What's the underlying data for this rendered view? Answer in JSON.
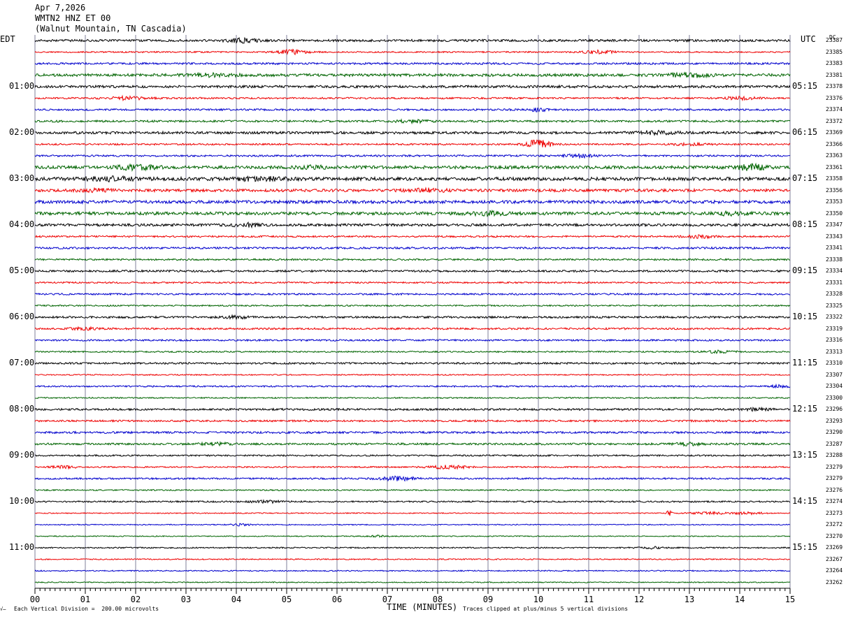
{
  "header": {
    "date": "Apr 7,2026",
    "station": "WMTN2 HNZ ET 00",
    "location": "(Walnut Mountain, TN Cascadia)"
  },
  "left_tz": "EDT",
  "right_tz": "UTC",
  "dc_label": "DC",
  "footer": {
    "scale_note": "Each Vertical Division =  200.00 microvolts",
    "xlabel": "TIME (MINUTES)",
    "clip_note": "Traces clipped at plus/minus 5 vertical divisions",
    "corner_mark": "√̶"
  },
  "colors": {
    "trace_cycle": [
      "#000000",
      "#ee0000",
      "#0000cc",
      "#006400"
    ],
    "grid": "#7f7f99"
  },
  "chart_data": {
    "type": "line",
    "title": "",
    "xlabel": "TIME (MINUTES)",
    "xlim": [
      0,
      15
    ],
    "x_ticks": [
      "00",
      "01",
      "02",
      "03",
      "04",
      "05",
      "06",
      "07",
      "08",
      "09",
      "10",
      "11",
      "12",
      "13",
      "14",
      "15"
    ],
    "rows_per_hour": 4,
    "left_hour_labels": [
      "01:00",
      "02:00",
      "03:00",
      "04:00",
      "05:00",
      "06:00",
      "07:00",
      "08:00",
      "09:00",
      "10:00",
      "11:00"
    ],
    "right_hour_labels": [
      "05:15",
      "06:15",
      "07:15",
      "08:15",
      "09:15",
      "10:15",
      "11:15",
      "12:15",
      "13:15",
      "14:15",
      "15:15"
    ],
    "dc_offsets": [
      23387,
      23385,
      23383,
      23381,
      23378,
      23376,
      23374,
      23372,
      23369,
      23366,
      23363,
      23361,
      23358,
      23356,
      23353,
      23350,
      23347,
      23343,
      23341,
      23338,
      23334,
      23331,
      23328,
      23325,
      23322,
      23319,
      23316,
      23313,
      23310,
      23307,
      23304,
      23300,
      23296,
      23293,
      23290,
      23287,
      23288,
      23279,
      23279,
      23276,
      23274,
      23273,
      23272,
      23270,
      23269,
      23267,
      23264,
      23262
    ],
    "series": [
      {
        "row": 0,
        "noise": 1.6,
        "events": [
          [
            4.1,
            2.5,
            0.3
          ]
        ]
      },
      {
        "row": 1,
        "noise": 1.0,
        "events": [
          [
            5.1,
            3,
            0.3
          ],
          [
            11.2,
            2.5,
            0.3
          ]
        ]
      },
      {
        "row": 2,
        "noise": 1.4,
        "events": []
      },
      {
        "row": 3,
        "noise": 2.0,
        "events": [
          [
            13.0,
            2.5,
            0.4
          ],
          [
            3.5,
            1.5,
            0.5
          ]
        ]
      },
      {
        "row": 4,
        "noise": 1.8,
        "events": []
      },
      {
        "row": 5,
        "noise": 1.2,
        "events": [
          [
            1.8,
            2,
            0.4
          ],
          [
            14.0,
            2,
            0.3
          ]
        ]
      },
      {
        "row": 6,
        "noise": 1.3,
        "events": [
          [
            10.0,
            2,
            0.2
          ]
        ]
      },
      {
        "row": 7,
        "noise": 1.4,
        "events": [
          [
            7.5,
            2,
            0.3
          ]
        ]
      },
      {
        "row": 8,
        "noise": 1.8,
        "events": [
          [
            12.3,
            2,
            0.4
          ]
        ]
      },
      {
        "row": 9,
        "noise": 1.2,
        "events": [
          [
            10.0,
            6,
            0.25
          ],
          [
            13.0,
            1.5,
            0.3
          ]
        ]
      },
      {
        "row": 10,
        "noise": 1.3,
        "events": [
          [
            10.8,
            2,
            0.3
          ]
        ]
      },
      {
        "row": 11,
        "noise": 2.2,
        "events": [
          [
            2.0,
            3,
            0.4
          ],
          [
            14.2,
            4,
            0.3
          ],
          [
            5.5,
            2,
            0.3
          ]
        ]
      },
      {
        "row": 12,
        "noise": 2.4,
        "events": [
          [
            1.5,
            2,
            0.5
          ],
          [
            4.5,
            2,
            0.5
          ]
        ]
      },
      {
        "row": 13,
        "noise": 2.0,
        "events": [
          [
            1.2,
            2,
            0.3
          ],
          [
            7.8,
            2,
            0.4
          ]
        ]
      },
      {
        "row": 14,
        "noise": 2.2,
        "events": []
      },
      {
        "row": 15,
        "noise": 2.2,
        "events": [
          [
            9.0,
            2,
            0.4
          ],
          [
            13.8,
            2,
            0.3
          ]
        ]
      },
      {
        "row": 16,
        "noise": 1.8,
        "events": [
          [
            4.2,
            2,
            0.3
          ]
        ]
      },
      {
        "row": 17,
        "noise": 1.2,
        "events": [
          [
            13.2,
            2,
            0.3
          ]
        ]
      },
      {
        "row": 18,
        "noise": 1.4,
        "events": []
      },
      {
        "row": 19,
        "noise": 1.2,
        "events": []
      },
      {
        "row": 20,
        "noise": 1.4,
        "events": []
      },
      {
        "row": 21,
        "noise": 1.1,
        "events": []
      },
      {
        "row": 22,
        "noise": 1.2,
        "events": []
      },
      {
        "row": 23,
        "noise": 1.0,
        "events": []
      },
      {
        "row": 24,
        "noise": 1.4,
        "events": [
          [
            4.0,
            1.5,
            0.3
          ]
        ]
      },
      {
        "row": 25,
        "noise": 1.3,
        "events": [
          [
            1.0,
            1.5,
            0.3
          ]
        ]
      },
      {
        "row": 26,
        "noise": 1.2,
        "events": []
      },
      {
        "row": 27,
        "noise": 1.0,
        "events": [
          [
            13.6,
            1.5,
            0.3
          ]
        ]
      },
      {
        "row": 28,
        "noise": 1.3,
        "events": []
      },
      {
        "row": 29,
        "noise": 0.8,
        "events": []
      },
      {
        "row": 30,
        "noise": 1.1,
        "events": [
          [
            14.8,
            1.5,
            0.2
          ]
        ]
      },
      {
        "row": 31,
        "noise": 0.9,
        "events": []
      },
      {
        "row": 32,
        "noise": 1.4,
        "events": [
          [
            14.3,
            1.5,
            0.3
          ]
        ]
      },
      {
        "row": 33,
        "noise": 1.3,
        "events": []
      },
      {
        "row": 34,
        "noise": 1.5,
        "events": []
      },
      {
        "row": 35,
        "noise": 1.4,
        "events": [
          [
            3.6,
            1.5,
            0.3
          ],
          [
            13.0,
            1.5,
            0.3
          ]
        ]
      },
      {
        "row": 36,
        "noise": 1.1,
        "events": []
      },
      {
        "row": 37,
        "noise": 1.0,
        "events": [
          [
            0.6,
            1.5,
            0.3
          ],
          [
            8.2,
            2,
            0.4
          ]
        ]
      },
      {
        "row": 38,
        "noise": 1.2,
        "events": [
          [
            7.2,
            2.5,
            0.4
          ]
        ]
      },
      {
        "row": 39,
        "noise": 0.9,
        "events": []
      },
      {
        "row": 40,
        "noise": 1.1,
        "events": [
          [
            4.6,
            1.5,
            0.3
          ]
        ]
      },
      {
        "row": 41,
        "noise": 0.7,
        "events": [
          [
            12.6,
            5,
            0.05
          ],
          [
            13.4,
            1.5,
            0.4
          ],
          [
            14.2,
            1.5,
            0.3
          ]
        ]
      },
      {
        "row": 42,
        "noise": 0.7,
        "events": [
          [
            4.1,
            1.5,
            0.2
          ]
        ]
      },
      {
        "row": 43,
        "noise": 0.7,
        "events": [
          [
            6.8,
            1.2,
            0.2
          ]
        ]
      },
      {
        "row": 44,
        "noise": 0.9,
        "events": [
          [
            12.3,
            1.2,
            0.3
          ]
        ]
      },
      {
        "row": 45,
        "noise": 0.8,
        "events": []
      },
      {
        "row": 46,
        "noise": 0.8,
        "events": []
      },
      {
        "row": 47,
        "noise": 0.7,
        "events": []
      }
    ]
  }
}
